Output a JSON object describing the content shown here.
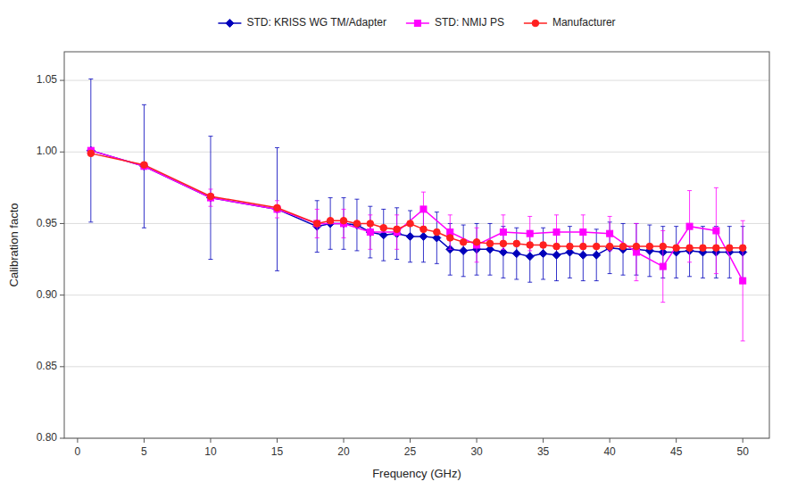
{
  "chart_data": {
    "type": "line",
    "xlabel": "Frequency (GHz)",
    "ylabel": "Calibration facto",
    "xlim": [
      -1,
      52
    ],
    "ylim": [
      0.8,
      1.07
    ],
    "xticks": [
      0,
      5,
      10,
      15,
      20,
      25,
      30,
      35,
      40,
      45,
      50
    ],
    "yticks": [
      {
        "value": 0.8,
        "label": "0.80"
      },
      0.85,
      {
        "value": 0.9,
        "label": "0.90"
      },
      0.95,
      {
        "value": 1.0,
        "label": "1.00"
      },
      1.05
    ],
    "grid": "y",
    "legend": "top",
    "series": [
      {
        "name": "STD: KRISS WG TM/Adapter",
        "color": "#0000BB",
        "marker": "diamond",
        "line_style": "solid",
        "x": [
          1,
          5,
          10,
          15,
          18,
          19,
          20,
          21,
          22,
          23,
          24,
          25,
          26,
          27,
          28,
          29,
          30,
          31,
          32,
          33,
          34,
          35,
          36,
          37,
          38,
          39,
          40,
          41,
          42,
          43,
          44,
          45,
          46,
          47,
          48,
          49,
          50
        ],
        "values": [
          1.001,
          0.99,
          0.968,
          0.96,
          0.948,
          0.95,
          0.95,
          0.949,
          0.944,
          0.942,
          0.943,
          0.941,
          0.941,
          0.94,
          0.932,
          0.931,
          0.932,
          0.932,
          0.93,
          0.929,
          0.927,
          0.929,
          0.928,
          0.93,
          0.928,
          0.928,
          0.933,
          0.932,
          0.932,
          0.931,
          0.93,
          0.93,
          0.931,
          0.93,
          0.93,
          0.93,
          0.93
        ],
        "error_plus": [
          0.05,
          0.043,
          0.043,
          0.043,
          0.018,
          0.018,
          0.018,
          0.018,
          0.018,
          0.018,
          0.018,
          0.018,
          0.018,
          0.018,
          0.018,
          0.018,
          0.018,
          0.018,
          0.018,
          0.018,
          0.018,
          0.018,
          0.018,
          0.018,
          0.018,
          0.018,
          0.018,
          0.018,
          0.018,
          0.018,
          0.018,
          0.018,
          0.018,
          0.018,
          0.018,
          0.018,
          0.018
        ],
        "error_minus": [
          0.05,
          0.043,
          0.043,
          0.043,
          0.018,
          0.018,
          0.018,
          0.018,
          0.018,
          0.018,
          0.018,
          0.018,
          0.018,
          0.018,
          0.018,
          0.018,
          0.018,
          0.018,
          0.018,
          0.018,
          0.018,
          0.018,
          0.018,
          0.018,
          0.018,
          0.018,
          0.018,
          0.018,
          0.018,
          0.018,
          0.018,
          0.018,
          0.018,
          0.018,
          0.018,
          0.018,
          0.018
        ]
      },
      {
        "name": "STD: NMIJ PS",
        "color": "#FF00FF",
        "marker": "square",
        "line_style": "solid",
        "x": [
          1,
          5,
          10,
          15,
          18,
          20,
          22,
          24,
          26,
          28,
          30,
          32,
          34,
          36,
          38,
          40,
          42,
          44,
          46,
          48,
          50
        ],
        "values": [
          1.001,
          0.99,
          0.968,
          0.96,
          0.95,
          0.95,
          0.944,
          0.944,
          0.96,
          0.944,
          0.935,
          0.944,
          0.943,
          0.944,
          0.944,
          0.943,
          0.93,
          0.92,
          0.948,
          0.945,
          0.91
        ],
        "error_plus": [
          0.0,
          0.0,
          0.006,
          0.006,
          0.01,
          0.01,
          0.012,
          0.012,
          0.012,
          0.012,
          0.012,
          0.012,
          0.012,
          0.012,
          0.012,
          0.012,
          0.02,
          0.025,
          0.025,
          0.03,
          0.042
        ],
        "error_minus": [
          0.0,
          0.0,
          0.006,
          0.006,
          0.01,
          0.01,
          0.012,
          0.012,
          0.012,
          0.012,
          0.012,
          0.012,
          0.012,
          0.012,
          0.012,
          0.012,
          0.02,
          0.025,
          0.025,
          0.03,
          0.042
        ]
      },
      {
        "name": "Manufacturer",
        "color": "#FF2020",
        "marker": "circle",
        "line_style": "solid",
        "x": [
          1,
          5,
          10,
          15,
          18,
          19,
          20,
          21,
          22,
          23,
          24,
          25,
          26,
          27,
          28,
          29,
          30,
          31,
          32,
          33,
          34,
          35,
          36,
          37,
          38,
          39,
          40,
          41,
          42,
          43,
          44,
          45,
          46,
          47,
          48,
          49,
          50
        ],
        "values": [
          0.999,
          0.991,
          0.969,
          0.961,
          0.95,
          0.952,
          0.952,
          0.95,
          0.95,
          0.947,
          0.946,
          0.95,
          0.946,
          0.944,
          0.94,
          0.937,
          0.937,
          0.936,
          0.936,
          0.936,
          0.935,
          0.935,
          0.934,
          0.934,
          0.934,
          0.934,
          0.934,
          0.934,
          0.934,
          0.934,
          0.934,
          0.933,
          0.933,
          0.933,
          0.933,
          0.933,
          0.933
        ]
      }
    ]
  }
}
